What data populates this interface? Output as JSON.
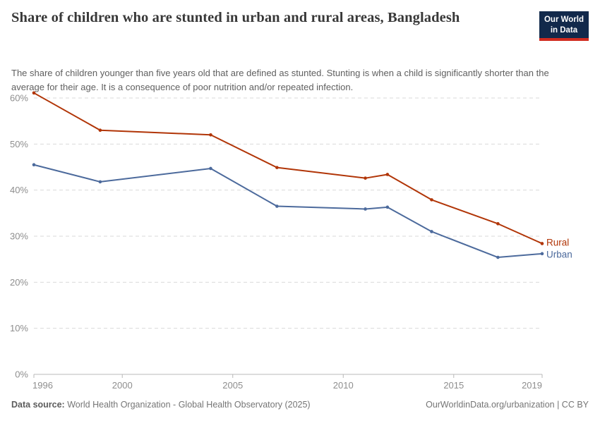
{
  "header": {
    "title": "Share of children who are stunted in urban and rural areas, Bangladesh",
    "subtitle": "The share of children younger than five years old that are defined as stunted. Stunting is when a child is significantly shorter than the average for their age. It is a consequence of poor nutrition and/or repeated infection.",
    "logo": {
      "line1": "Our World",
      "line2": "in Data",
      "bg_color": "#12294b",
      "accent_color": "#d12b1f"
    }
  },
  "chart_data": {
    "type": "line",
    "x": [
      1996,
      1999,
      2004,
      2007,
      2011,
      2012,
      2014,
      2017,
      2019
    ],
    "series": [
      {
        "name": "Rural",
        "color": "#B13507",
        "values": [
          61.1,
          53.0,
          52.0,
          44.9,
          42.6,
          43.4,
          37.9,
          32.7,
          28.4
        ]
      },
      {
        "name": "Urban",
        "color": "#4C6A9C",
        "values": [
          45.5,
          41.8,
          44.7,
          36.5,
          35.9,
          36.3,
          31.0,
          25.4,
          26.2
        ]
      }
    ],
    "xlim": [
      1996,
      2019
    ],
    "ylim": [
      0,
      60
    ],
    "x_ticks": [
      1996,
      2000,
      2005,
      2010,
      2015,
      2019
    ],
    "x_tick_labels": [
      "1996",
      "2000",
      "2005",
      "2010",
      "2015",
      "2019"
    ],
    "y_ticks": [
      0,
      10,
      20,
      30,
      40,
      50,
      60
    ],
    "y_tick_labels": [
      "0%",
      "10%",
      "20%",
      "30%",
      "40%",
      "50%",
      "60%"
    ],
    "grid": "horizontal-dashed",
    "legend_position": "line-end-labels",
    "axis_label_color": "#8e8e8e",
    "gridline_color": "#dadada",
    "axis_line_color": "#b8b8b8"
  },
  "footer": {
    "source_label": "Data source:",
    "source_text": "World Health Organization - Global Health Observatory (2025)",
    "attribution": "OurWorldinData.org/urbanization | CC BY"
  }
}
